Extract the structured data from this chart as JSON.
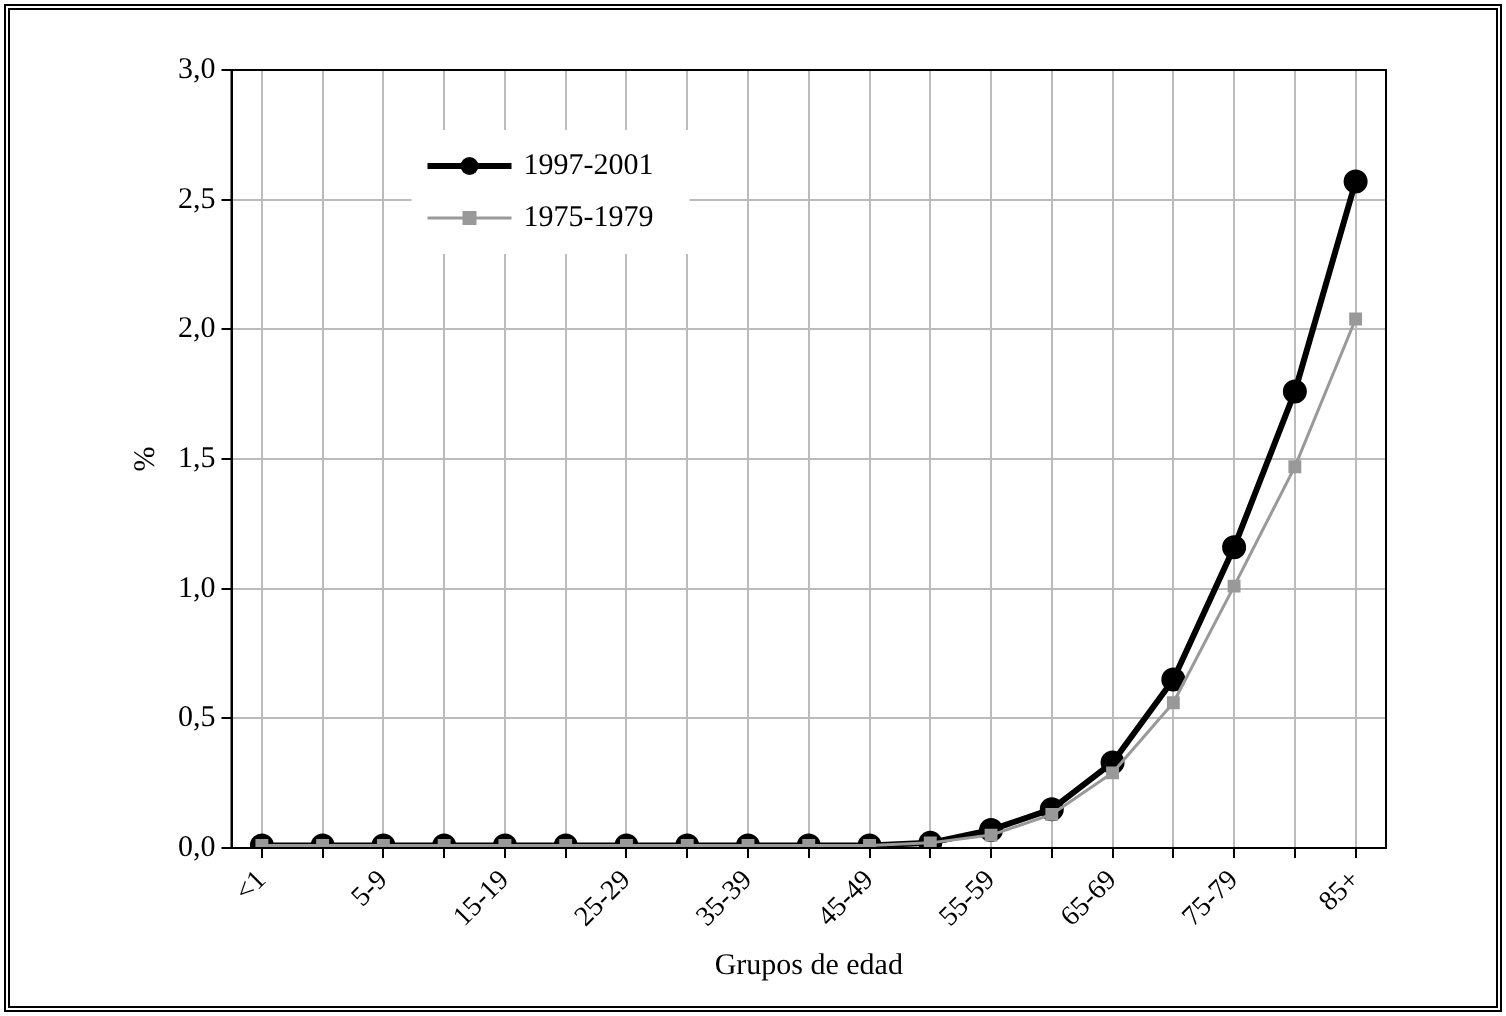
{
  "chart_data": {
    "type": "line",
    "xlabel": "Grupos de edad",
    "ylabel": "%",
    "categories": [
      "<1",
      null,
      "5-9",
      null,
      "15-19",
      null,
      "25-29",
      null,
      "35-39",
      null,
      "45-49",
      null,
      "55-59",
      null,
      "65-69",
      null,
      "75-79",
      null,
      "85+"
    ],
    "series": [
      {
        "name": "1997-2001",
        "color": "#000000",
        "marker": "circle",
        "values": [
          0.01,
          0.01,
          0.01,
          0.01,
          0.01,
          0.01,
          0.01,
          0.01,
          0.01,
          0.01,
          0.01,
          0.02,
          0.07,
          0.15,
          0.33,
          0.65,
          1.16,
          1.76,
          2.57
        ]
      },
      {
        "name": "1975-1979",
        "color": "#999999",
        "marker": "square",
        "values": [
          0.01,
          0.01,
          0.01,
          0.01,
          0.01,
          0.01,
          0.01,
          0.01,
          0.01,
          0.01,
          0.01,
          0.02,
          0.05,
          0.13,
          0.29,
          0.56,
          1.01,
          1.47,
          2.04
        ]
      }
    ],
    "ylim": [
      0,
      3
    ],
    "yticks": [
      {
        "value": 0,
        "label": "0,0"
      },
      {
        "value": 0.5,
        "label": "0,5"
      },
      {
        "value": 1,
        "label": "1,0"
      },
      {
        "value": 1.5,
        "label": "1,5"
      },
      {
        "value": 2,
        "label": "2,0"
      },
      {
        "value": 2.5,
        "label": "2,5"
      },
      {
        "value": 3,
        "label": "3,0"
      }
    ],
    "grid": true,
    "legend": "top left"
  }
}
